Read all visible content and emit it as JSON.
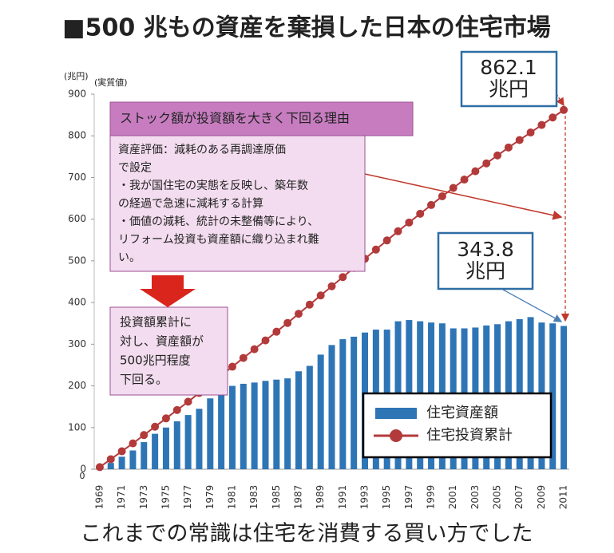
{
  "chart_data": {
    "type": "bar",
    "title": "■500 兆もの資産を棄損した日本の住宅市場",
    "caption": "これまでの常識は住宅を消費する買い方でした",
    "y_unit": "(兆円)",
    "y_note": "(実質値)",
    "origin_label": "0",
    "categories": [
      "1969",
      null,
      "1971",
      null,
      "1973",
      null,
      "1975",
      null,
      "1977",
      null,
      "1979",
      null,
      "1981",
      null,
      "1983",
      null,
      "1985",
      null,
      "1987",
      null,
      "1989",
      null,
      "1991",
      null,
      "1993",
      null,
      "1995",
      null,
      "1997",
      null,
      "1999",
      null,
      "2001",
      null,
      "2003",
      null,
      "2005",
      null,
      "2007",
      null,
      "2009",
      null,
      "2011"
    ],
    "series": [
      {
        "name": "住宅資産額",
        "type": "bar",
        "color": "#2e75b6",
        "values": [
          3,
          15,
          30,
          45,
          65,
          85,
          100,
          115,
          130,
          145,
          170,
          185,
          200,
          205,
          208,
          212,
          215,
          218,
          235,
          248,
          275,
          298,
          312,
          318,
          328,
          335,
          335,
          355,
          358,
          355,
          352,
          350,
          338,
          338,
          340,
          345,
          348,
          355,
          360,
          365,
          352,
          350,
          343.8
        ]
      },
      {
        "name": "住宅投資累計",
        "type": "line",
        "color": "#b33a3a",
        "values": [
          5,
          24,
          43,
          62,
          82,
          102,
          122,
          142,
          162,
          183,
          204,
          225,
          246,
          267,
          288,
          309,
          330,
          351,
          373,
          395,
          417,
          439,
          461,
          483,
          505,
          527,
          549,
          571,
          592,
          613,
          634,
          655,
          675,
          695,
          715,
          734,
          753,
          772,
          790,
          808,
          826,
          844,
          862.1
        ]
      }
    ],
    "ylim": [
      0,
      900
    ],
    "yticks": [
      0,
      100,
      200,
      300,
      400,
      500,
      600,
      700,
      800,
      900
    ],
    "grid": false,
    "annotations": {
      "reason_title": "ストック額が投資額を大きく下回る理由",
      "reason_lines": [
        "資産評価：減耗のある再調達原価",
        "で設定",
        "・我が国住宅の実態を反映し、築年数",
        "の経過で急速に減耗する計算",
        "・価値の減耗、統計の未整備等により、",
        "リフォーム投資も資産額に織り込まれ難",
        "い。"
      ],
      "result_lines": [
        "投資額累計に",
        "対し、資産額が",
        "500兆円程度",
        "下回る。"
      ],
      "callout_top": [
        "862.1",
        "兆円"
      ],
      "callout_bottom": [
        "343.8",
        "兆円"
      ]
    }
  }
}
